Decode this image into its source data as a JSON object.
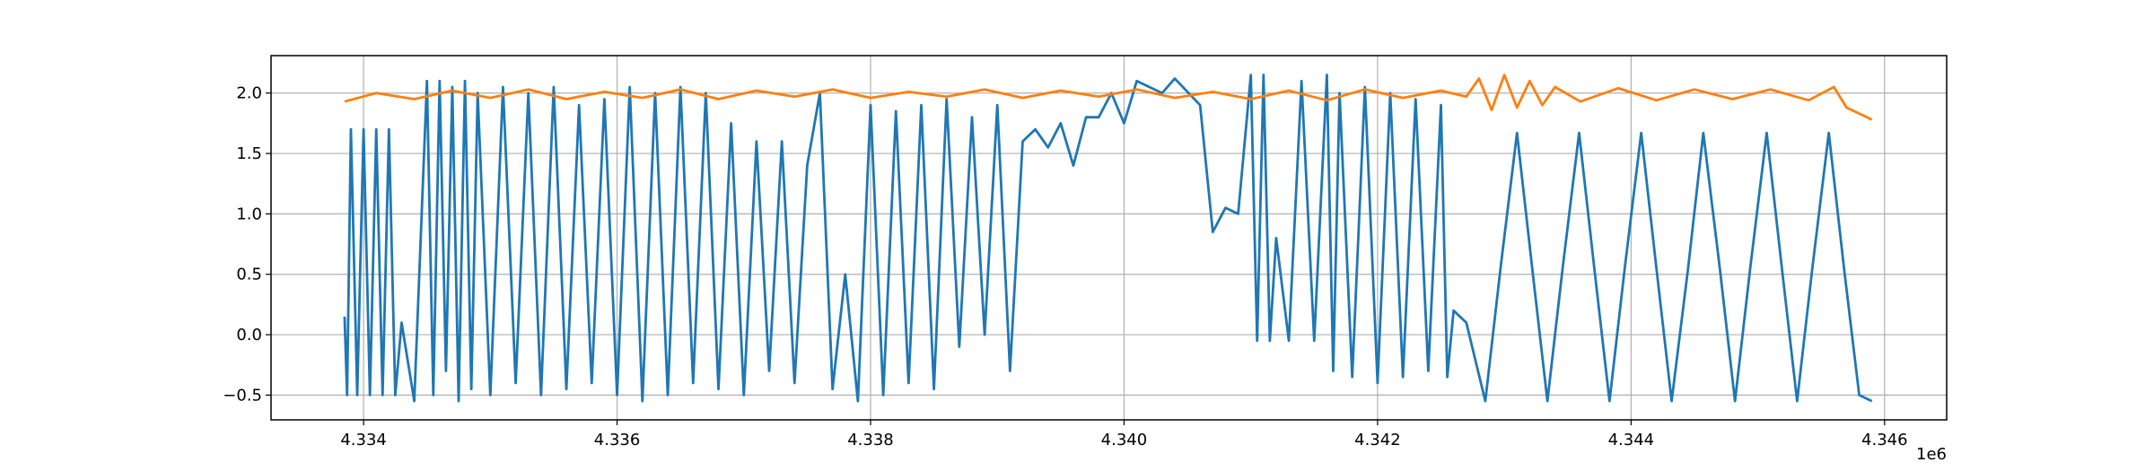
{
  "chart_data": {
    "type": "line",
    "grid": true,
    "x_offset_label": "1e6",
    "xlim": [
      4.33327,
      4.34649
    ],
    "ylim": [
      -0.705,
      2.31
    ],
    "xticks": [
      4.334,
      4.336,
      4.338,
      {
        "value": 4.34,
        "label": "4.340"
      },
      4.342,
      4.344,
      4.346
    ],
    "yticks": [
      {
        "value": -0.5,
        "label": "−0.5"
      },
      {
        "value": 0,
        "label": "0.0"
      },
      0.5,
      {
        "value": 1,
        "label": "1.0"
      },
      1.5,
      {
        "value": 2,
        "label": "2.0"
      }
    ],
    "series": [
      {
        "color": "#1f77b4",
        "x": [
          4.33385,
          4.33387,
          4.3339,
          4.33395,
          4.334,
          4.33405,
          4.3341,
          4.33415,
          4.3342,
          4.33425,
          4.3343,
          4.3344,
          4.3345,
          4.33455,
          4.3346,
          4.33465,
          4.3347,
          4.33475,
          4.3348,
          4.33485,
          4.3349,
          4.335,
          4.3351,
          4.3352,
          4.3353,
          4.3354,
          4.3355,
          4.3356,
          4.3357,
          4.3358,
          4.3359,
          4.336,
          4.3361,
          4.3362,
          4.3363,
          4.3364,
          4.3365,
          4.3366,
          4.3367,
          4.3368,
          4.3369,
          4.337,
          4.3371,
          4.3372,
          4.3373,
          4.3374,
          4.3375,
          4.3376,
          4.3377,
          4.3378,
          4.3379,
          4.338,
          4.3381,
          4.3382,
          4.3383,
          4.3384,
          4.3385,
          4.3386,
          4.3387,
          4.3388,
          4.3389,
          4.339,
          4.3391,
          4.3392,
          4.3393,
          4.3394,
          4.3395,
          4.3396,
          4.3397,
          4.3398,
          4.3399,
          4.34,
          4.3401,
          4.3403,
          4.3404,
          4.3406,
          4.3407,
          4.3408,
          4.3409,
          4.341,
          4.34105,
          4.3411,
          4.34115,
          4.3412,
          4.3413,
          4.3414,
          4.3415,
          4.3416,
          4.34165,
          4.3417,
          4.3418,
          4.3419,
          4.342,
          4.3421,
          4.3422,
          4.3423,
          4.3424,
          4.3425,
          4.34255,
          4.3426,
          4.3427,
          4.34285,
          4.34297,
          4.3431,
          4.34322,
          4.34334,
          4.34346,
          4.34359,
          4.34371,
          4.34383,
          4.34395,
          4.34408,
          4.3442,
          4.34432,
          4.34445,
          4.34457,
          4.3447,
          4.34482,
          4.34494,
          4.34507,
          4.34519,
          4.34531,
          4.34543,
          4.34556,
          4.34568,
          4.3458,
          4.3459
        ],
        "values": [
          0.15,
          -0.5,
          1.7,
          -0.5,
          1.7,
          -0.5,
          1.7,
          -0.5,
          1.7,
          -0.5,
          0.1,
          -0.55,
          2.1,
          -0.5,
          2.1,
          -0.3,
          2.05,
          -0.55,
          2.1,
          -0.45,
          2.0,
          -0.5,
          2.05,
          -0.4,
          2.0,
          -0.5,
          2.05,
          -0.45,
          1.9,
          -0.4,
          1.95,
          -0.5,
          2.05,
          -0.55,
          2.0,
          -0.5,
          2.05,
          -0.4,
          2.0,
          -0.45,
          1.75,
          -0.5,
          1.6,
          -0.3,
          1.6,
          -0.4,
          1.4,
          2.0,
          -0.45,
          0.5,
          -0.55,
          1.9,
          -0.5,
          1.85,
          -0.4,
          1.9,
          -0.45,
          1.95,
          -0.1,
          1.8,
          0.0,
          1.9,
          -0.3,
          1.6,
          1.7,
          1.55,
          1.75,
          1.4,
          1.8,
          1.8,
          2.0,
          1.75,
          2.1,
          2.0,
          2.12,
          1.9,
          0.85,
          1.05,
          1.0,
          2.15,
          -0.05,
          2.15,
          -0.05,
          0.8,
          -0.05,
          2.1,
          -0.05,
          2.15,
          -0.3,
          2.0,
          -0.35,
          2.05,
          -0.4,
          2.0,
          -0.35,
          1.95,
          -0.3,
          1.9,
          -0.35,
          0.2,
          0.1,
          -0.55,
          0.55,
          1.67,
          0.55,
          -0.55,
          0.55,
          1.67,
          0.55,
          -0.55,
          0.55,
          1.67,
          0.55,
          -0.55,
          0.55,
          1.67,
          0.55,
          -0.55,
          0.55,
          1.67,
          0.55,
          -0.55,
          0.55,
          1.67,
          0.55,
          -0.5,
          -0.55
        ]
      },
      {
        "color": "#ff7f0e",
        "x": [
          4.33385,
          4.3341,
          4.3344,
          4.3347,
          4.335,
          4.3353,
          4.3356,
          4.3359,
          4.3362,
          4.3365,
          4.3368,
          4.3371,
          4.3374,
          4.3377,
          4.338,
          4.3383,
          4.3386,
          4.3389,
          4.3392,
          4.3395,
          4.3398,
          4.3401,
          4.3404,
          4.3407,
          4.341,
          4.3413,
          4.3416,
          4.3419,
          4.3422,
          4.3425,
          4.3427,
          4.3428,
          4.3429,
          4.343,
          4.3431,
          4.3432,
          4.3433,
          4.3434,
          4.3436,
          4.3439,
          4.3442,
          4.3445,
          4.3448,
          4.3451,
          4.3454,
          4.3456,
          4.3457,
          4.3458,
          4.3459
        ],
        "values": [
          1.93,
          2.0,
          1.95,
          2.02,
          1.96,
          2.03,
          1.95,
          2.01,
          1.96,
          2.03,
          1.95,
          2.02,
          1.97,
          2.03,
          1.96,
          2.01,
          1.97,
          2.03,
          1.96,
          2.02,
          1.97,
          2.03,
          1.96,
          2.01,
          1.95,
          2.02,
          1.94,
          2.03,
          1.96,
          2.02,
          1.97,
          2.12,
          1.86,
          2.15,
          1.88,
          2.1,
          1.9,
          2.05,
          1.93,
          2.04,
          1.94,
          2.03,
          1.95,
          2.03,
          1.94,
          2.05,
          1.88,
          1.83,
          1.78
        ]
      }
    ]
  }
}
